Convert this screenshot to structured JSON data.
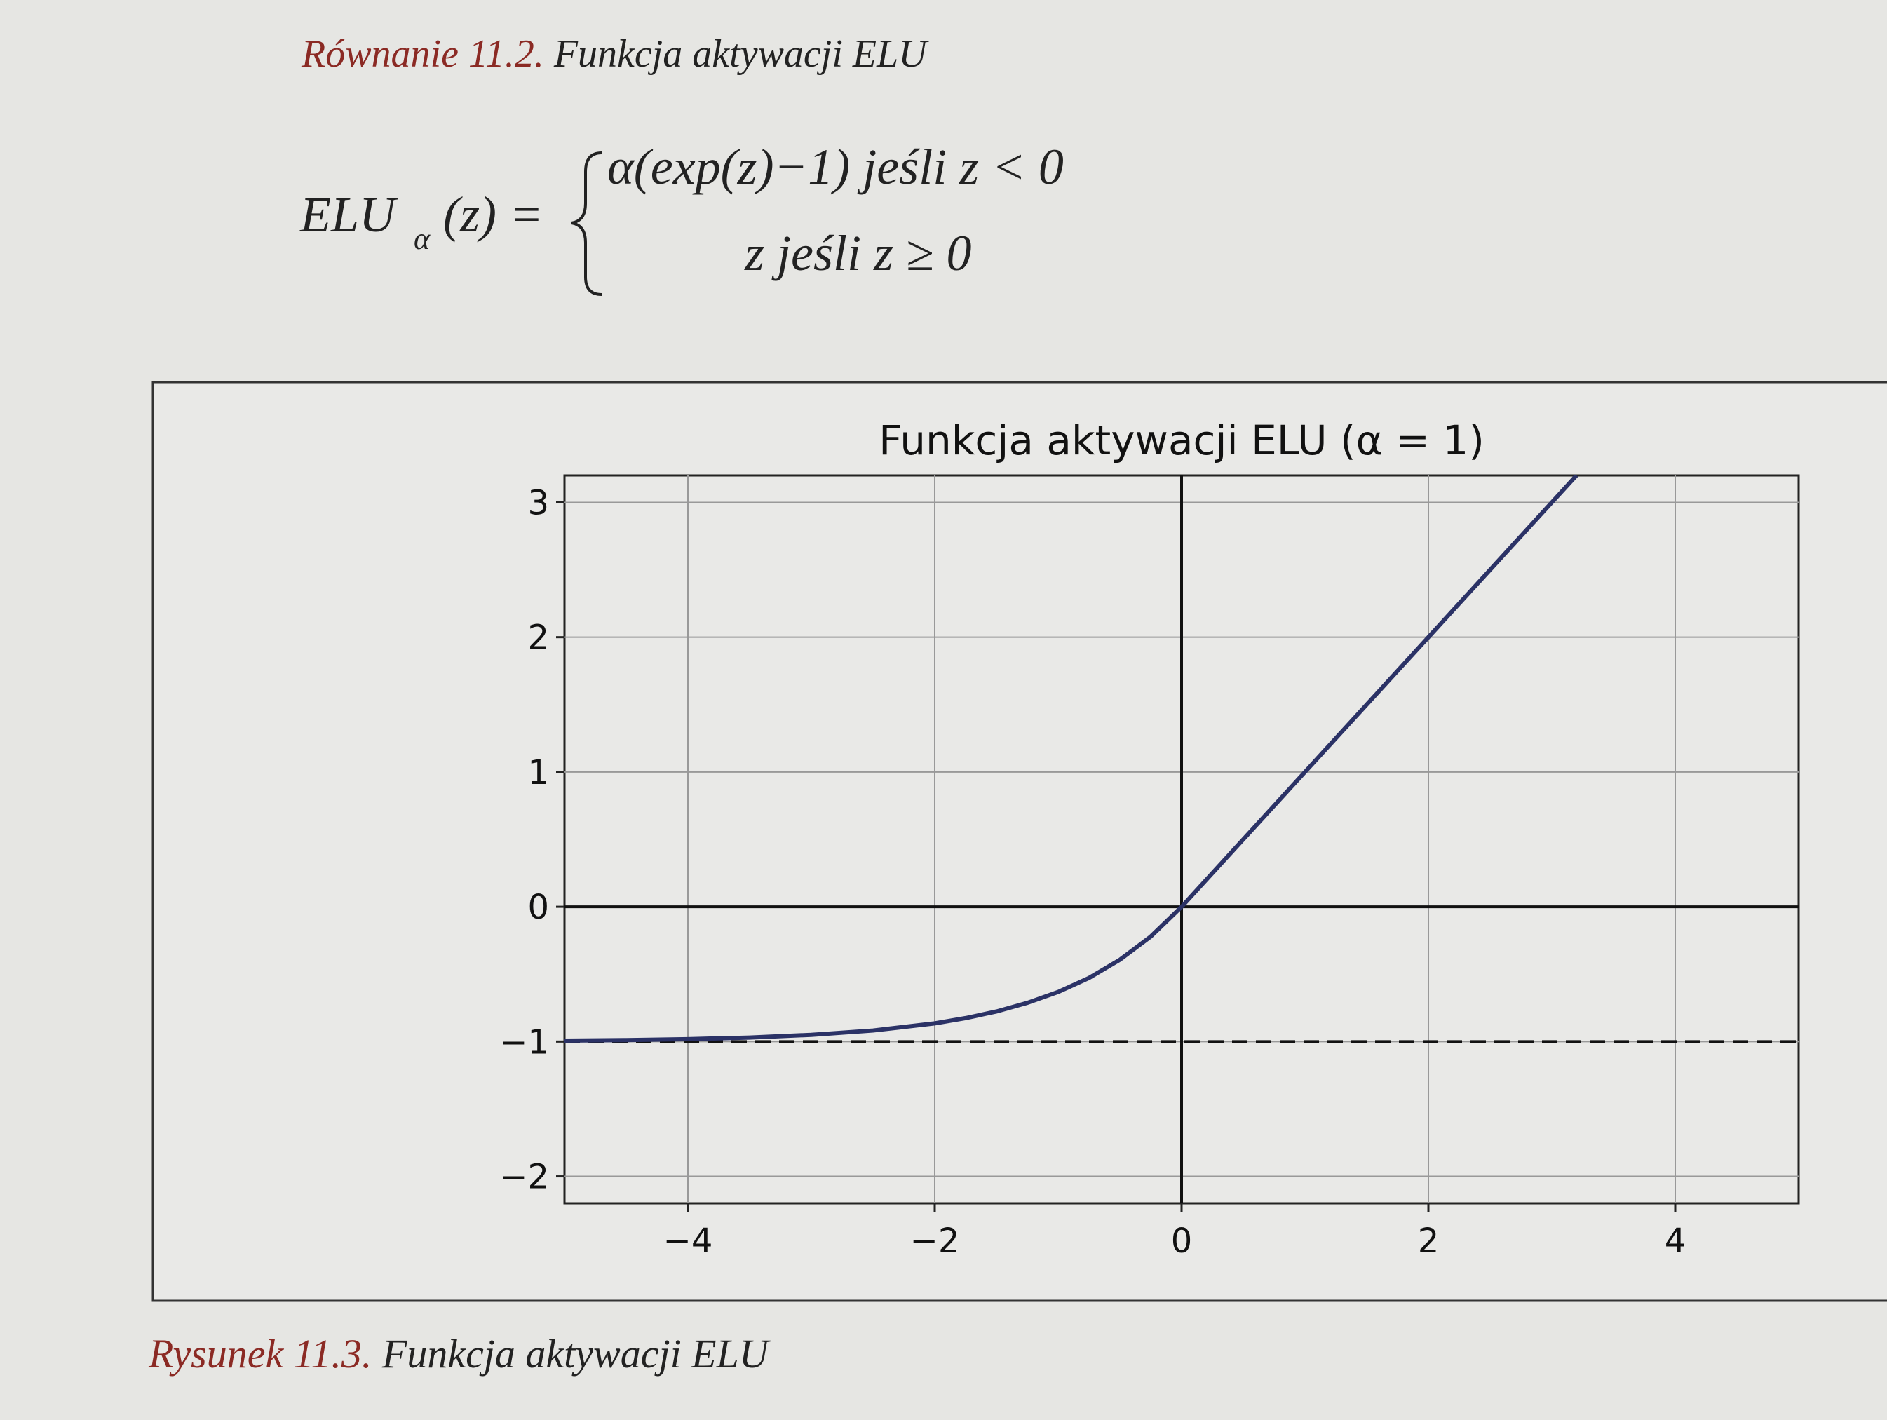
{
  "equation_caption": {
    "label": "Równanie 11.2.",
    "text": "Funkcja aktywacji ELU"
  },
  "equation": {
    "lhs": "ELU",
    "subscript": "α",
    "lhs_args": "(z) =",
    "case_1": "α(exp(z)−1) jeśli z < 0",
    "case_2": "z jeśli z ≥ 0"
  },
  "chart_data": {
    "type": "line",
    "title": "Funkcja aktywacji ELU (α = 1)",
    "x": [
      -5,
      -4.5,
      -4,
      -3.5,
      -3,
      -2.5,
      -2,
      -1.75,
      -1.5,
      -1.25,
      -1,
      -0.75,
      -0.5,
      -0.25,
      0,
      1,
      2,
      3.2
    ],
    "values": [
      -0.993,
      -0.989,
      -0.982,
      -0.97,
      -0.95,
      -0.918,
      -0.865,
      -0.826,
      -0.777,
      -0.713,
      -0.632,
      -0.528,
      -0.393,
      -0.221,
      0,
      1,
      2,
      3.2
    ],
    "color": "#2b3266",
    "reference_line": {
      "y": -1,
      "style": "dashed"
    },
    "xlim": [
      -5,
      5
    ],
    "ylim": [
      -2.2,
      3.2
    ],
    "xticks": [
      {
        "value": -4,
        "label": "−4"
      },
      {
        "value": -2,
        "label": "−2"
      },
      0,
      2,
      4
    ],
    "yticks": [
      {
        "value": -2,
        "label": "−2"
      },
      {
        "value": -1,
        "label": "−1"
      },
      0,
      1,
      2,
      3
    ],
    "grid": true
  },
  "figure_caption": {
    "label": "Rysunek 11.3.",
    "text": "Funkcja aktywacji ELU"
  }
}
